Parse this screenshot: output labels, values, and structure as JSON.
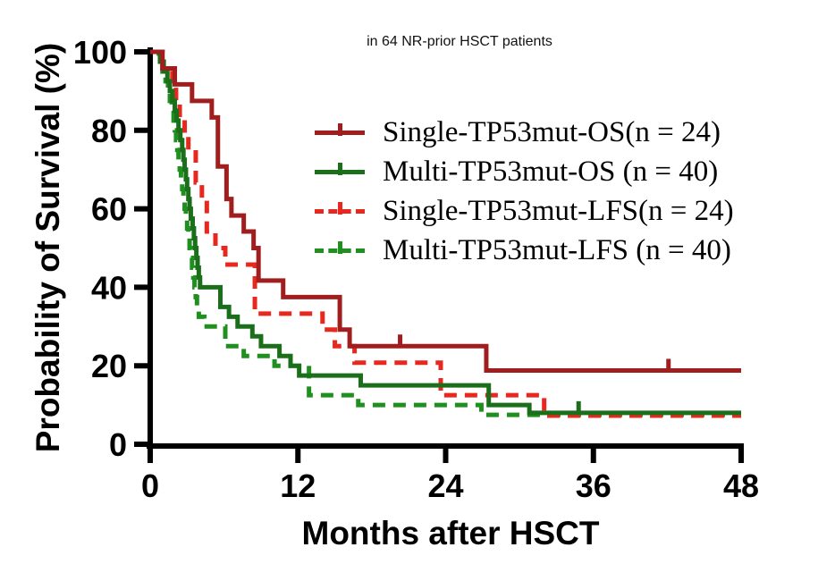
{
  "chart_data": {
    "type": "line",
    "subtype": "kaplan-meier-step-survival",
    "title": "in 64 NR-prior HSCT patients",
    "xlabel": "Months after HSCT",
    "ylabel": "Probability of Survival (%)",
    "xlim": [
      0,
      48
    ],
    "ylim": [
      0,
      100
    ],
    "x_ticks": [
      0,
      12,
      24,
      36,
      48
    ],
    "y_ticks": [
      0,
      20,
      40,
      60,
      80,
      100
    ],
    "grid": false,
    "legend_position": "upper right",
    "axis_color": "#000000",
    "series": [
      {
        "name": "Single-TP53mut-OS(n = 24)",
        "n": 24,
        "color": "#A01E1E",
        "style": "solid",
        "end_month": 48,
        "steps": [
          [
            0,
            100
          ],
          [
            1.0,
            95.8
          ],
          [
            2.0,
            91.7
          ],
          [
            3.4,
            87.5
          ],
          [
            5.0,
            83.3
          ],
          [
            5.5,
            70.8
          ],
          [
            6.2,
            62.5
          ],
          [
            6.6,
            58.3
          ],
          [
            7.6,
            54.2
          ],
          [
            8.4,
            50
          ],
          [
            8.8,
            41.7
          ],
          [
            10.8,
            37.5
          ],
          [
            15.4,
            29.2
          ],
          [
            16.2,
            25
          ],
          [
            27.3,
            18.8
          ]
        ],
        "censor_marks": [
          [
            20.3,
            25
          ],
          [
            42.1,
            18.8
          ]
        ]
      },
      {
        "name": "Multi-TP53mut-OS (n = 40)",
        "n": 40,
        "color": "#1B6F1B",
        "style": "solid",
        "end_month": 48,
        "steps": [
          [
            0,
            100
          ],
          [
            0.8,
            97.5
          ],
          [
            1.1,
            95
          ],
          [
            1.4,
            92.5
          ],
          [
            1.6,
            90
          ],
          [
            1.8,
            87.5
          ],
          [
            2.0,
            85
          ],
          [
            2.15,
            82.5
          ],
          [
            2.3,
            80
          ],
          [
            2.45,
            77.5
          ],
          [
            2.6,
            75
          ],
          [
            2.7,
            72.5
          ],
          [
            2.8,
            70
          ],
          [
            2.9,
            67.5
          ],
          [
            3.0,
            65
          ],
          [
            3.1,
            62.5
          ],
          [
            3.2,
            60
          ],
          [
            3.3,
            57.5
          ],
          [
            3.45,
            55
          ],
          [
            3.55,
            52.5
          ],
          [
            3.65,
            50
          ],
          [
            3.75,
            47.5
          ],
          [
            3.85,
            45
          ],
          [
            3.95,
            42.5
          ],
          [
            4.05,
            40
          ],
          [
            5.7,
            35
          ],
          [
            6.4,
            32.5
          ],
          [
            7.1,
            30
          ],
          [
            8.3,
            27.5
          ],
          [
            9.0,
            25
          ],
          [
            10.5,
            22.5
          ],
          [
            11.4,
            20
          ],
          [
            12.1,
            17.5
          ],
          [
            17.1,
            15
          ],
          [
            27.5,
            10
          ],
          [
            30.8,
            8
          ]
        ],
        "censor_marks": [
          [
            34.8,
            8
          ]
        ]
      },
      {
        "name": "Single-TP53mut-LFS(n = 24)",
        "n": 24,
        "color": "#E8281E",
        "style": "dashed",
        "end_month": 48,
        "steps": [
          [
            0,
            100
          ],
          [
            1.0,
            95.8
          ],
          [
            1.8,
            91.7
          ],
          [
            2.1,
            87.5
          ],
          [
            2.4,
            83.3
          ],
          [
            2.8,
            79.2
          ],
          [
            3.1,
            75
          ],
          [
            3.7,
            66.7
          ],
          [
            4.2,
            62.5
          ],
          [
            4.6,
            54.2
          ],
          [
            5.3,
            50
          ],
          [
            6.1,
            45.8
          ],
          [
            8.5,
            33.3
          ],
          [
            14.0,
            29.2
          ],
          [
            15.0,
            25
          ],
          [
            16.6,
            20.8
          ],
          [
            23.6,
            12.5
          ],
          [
            32.0,
            7.3
          ]
        ],
        "censor_marks": []
      },
      {
        "name": "Multi-TP53mut-LFS (n = 40)",
        "n": 40,
        "color": "#1F8F1F",
        "style": "dashed",
        "end_month": 48,
        "steps": [
          [
            0,
            100
          ],
          [
            0.7,
            97.5
          ],
          [
            1.0,
            95
          ],
          [
            1.25,
            92.5
          ],
          [
            1.45,
            90
          ],
          [
            1.6,
            87.5
          ],
          [
            1.75,
            85
          ],
          [
            1.9,
            82.5
          ],
          [
            2.0,
            80
          ],
          [
            2.1,
            77.5
          ],
          [
            2.2,
            75
          ],
          [
            2.3,
            72.5
          ],
          [
            2.4,
            70
          ],
          [
            2.5,
            67.5
          ],
          [
            2.6,
            65
          ],
          [
            2.7,
            62.5
          ],
          [
            2.8,
            60
          ],
          [
            2.9,
            57.5
          ],
          [
            3.0,
            55
          ],
          [
            3.1,
            52.5
          ],
          [
            3.2,
            50
          ],
          [
            3.3,
            47.5
          ],
          [
            3.4,
            45
          ],
          [
            3.5,
            42.5
          ],
          [
            3.6,
            40
          ],
          [
            3.7,
            37.5
          ],
          [
            3.8,
            35
          ],
          [
            3.95,
            32.5
          ],
          [
            4.4,
            30
          ],
          [
            6.1,
            25
          ],
          [
            7.6,
            22.5
          ],
          [
            10.1,
            20
          ],
          [
            12.9,
            12.5
          ],
          [
            16.9,
            10
          ],
          [
            26.9,
            7.5
          ]
        ],
        "censor_marks": []
      }
    ]
  }
}
